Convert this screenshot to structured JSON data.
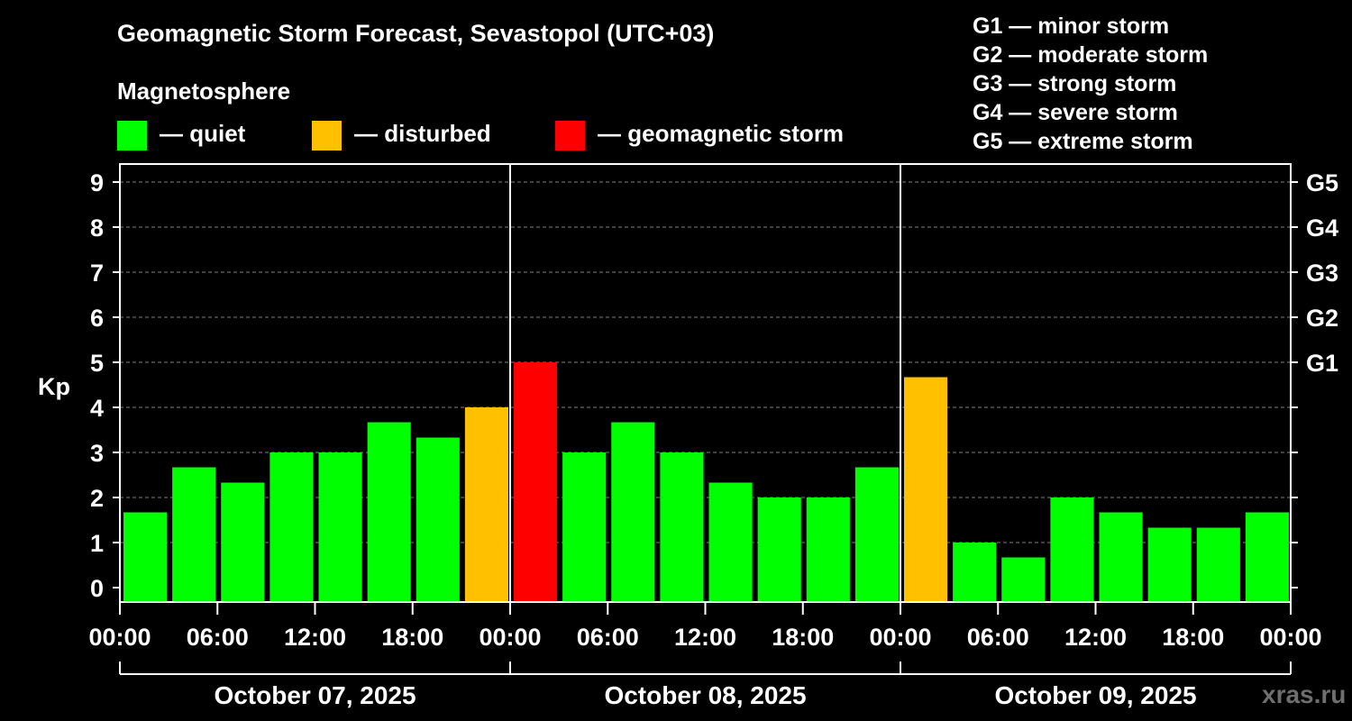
{
  "header": {
    "title": "Geomagnetic Storm Forecast, Sevastopol (UTC+03)",
    "subtitle": "Magnetosphere"
  },
  "legend": [
    {
      "label": "— quiet",
      "color": "#00ff00"
    },
    {
      "label": "— disturbed",
      "color": "#ffc000"
    },
    {
      "label": "— geomagnetic storm",
      "color": "#ff0000"
    }
  ],
  "g_legend": [
    "G1 — minor storm",
    "G2 — moderate storm",
    "G3 — strong storm",
    "G4 — severe storm",
    "G5 — extreme storm"
  ],
  "watermark": "xras.ru",
  "chart_data": {
    "type": "bar",
    "ylabel": "Kp",
    "ylim": [
      0,
      9
    ],
    "yticks": [
      0,
      1,
      2,
      3,
      4,
      5,
      6,
      7,
      8,
      9
    ],
    "right_ticks": [
      {
        "value": 5,
        "label": "G1"
      },
      {
        "value": 6,
        "label": "G2"
      },
      {
        "value": 7,
        "label": "G3"
      },
      {
        "value": 8,
        "label": "G4"
      },
      {
        "value": 9,
        "label": "G5"
      }
    ],
    "x_tick_labels": [
      "00:00",
      "06:00",
      "12:00",
      "18:00",
      "00:00",
      "06:00",
      "12:00",
      "18:00",
      "00:00",
      "06:00",
      "12:00",
      "18:00",
      "00:00"
    ],
    "days": [
      "October 07, 2025",
      "October 08, 2025",
      "October 09, 2025"
    ],
    "grid": true,
    "colors": {
      "quiet": "#00ff00",
      "disturbed": "#ffc000",
      "storm": "#ff0000"
    },
    "values": [
      1.67,
      2.67,
      2.33,
      3.0,
      3.0,
      3.67,
      3.33,
      4.0,
      5.0,
      3.0,
      3.67,
      3.0,
      2.33,
      2.0,
      2.0,
      2.67,
      4.67,
      1.0,
      0.67,
      2.0,
      1.67,
      1.33,
      1.33,
      1.67
    ],
    "levels": [
      "quiet",
      "quiet",
      "quiet",
      "quiet",
      "quiet",
      "quiet",
      "quiet",
      "disturbed",
      "storm",
      "quiet",
      "quiet",
      "quiet",
      "quiet",
      "quiet",
      "quiet",
      "quiet",
      "disturbed",
      "quiet",
      "quiet",
      "quiet",
      "quiet",
      "quiet",
      "quiet",
      "quiet"
    ]
  }
}
